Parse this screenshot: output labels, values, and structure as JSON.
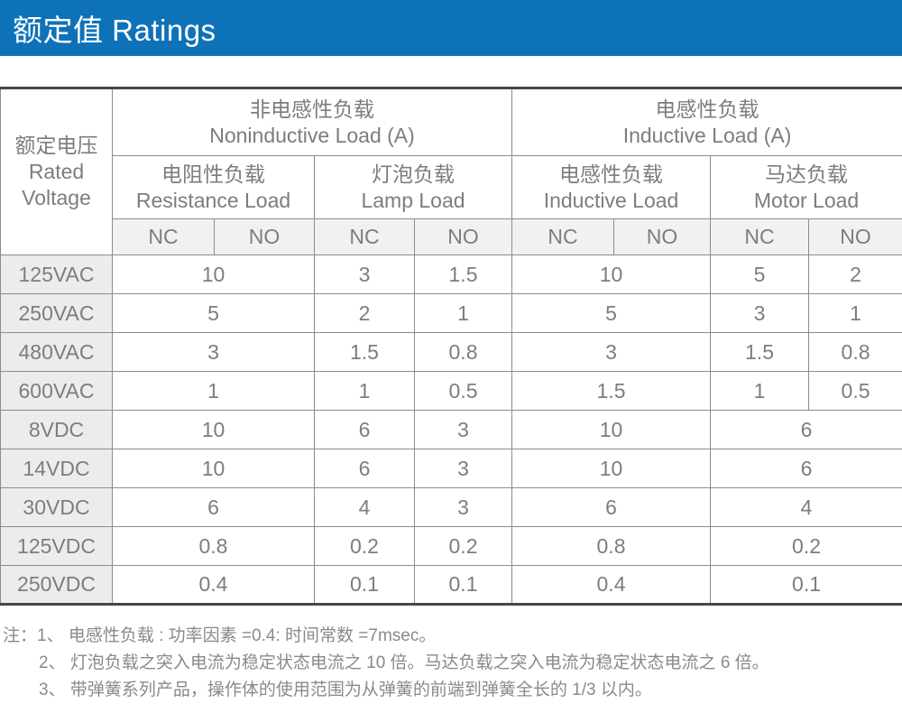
{
  "header": {
    "title": "额定值 Ratings"
  },
  "table": {
    "corner": {
      "zh": "额定电压",
      "en": "Rated Voltage"
    },
    "groups": [
      {
        "zh": "非电感性负载",
        "en": "Noninductive Load (A)"
      },
      {
        "zh": "电感性负载",
        "en": "Inductive Load (A)"
      }
    ],
    "subheaders": [
      {
        "zh": "电阻性负载",
        "en": "Resistance Load"
      },
      {
        "zh": "灯泡负载",
        "en": "Lamp Load"
      },
      {
        "zh": "电感性负载",
        "en": "Inductive Load"
      },
      {
        "zh": "马达负载",
        "en": "Motor Load"
      }
    ],
    "contact_labels": [
      "NC",
      "NO",
      "NC",
      "NO",
      "NC",
      "NO",
      "NC",
      "NO"
    ],
    "rows": [
      {
        "label": "125VAC",
        "cells": [
          {
            "value": "10",
            "span": 2
          },
          {
            "value": "3"
          },
          {
            "value": "1.5"
          },
          {
            "value": "10",
            "span": 2
          },
          {
            "value": "5"
          },
          {
            "value": "2"
          }
        ]
      },
      {
        "label": "250VAC",
        "cells": [
          {
            "value": "5",
            "span": 2
          },
          {
            "value": "2"
          },
          {
            "value": "1"
          },
          {
            "value": "5",
            "span": 2
          },
          {
            "value": "3"
          },
          {
            "value": "1"
          }
        ]
      },
      {
        "label": "480VAC",
        "cells": [
          {
            "value": "3",
            "span": 2
          },
          {
            "value": "1.5"
          },
          {
            "value": "0.8"
          },
          {
            "value": "3",
            "span": 2
          },
          {
            "value": "1.5"
          },
          {
            "value": "0.8"
          }
        ]
      },
      {
        "label": "600VAC",
        "cells": [
          {
            "value": "1",
            "span": 2
          },
          {
            "value": "1"
          },
          {
            "value": "0.5"
          },
          {
            "value": "1.5",
            "span": 2
          },
          {
            "value": "1"
          },
          {
            "value": "0.5"
          }
        ]
      },
      {
        "label": "8VDC",
        "cells": [
          {
            "value": "10",
            "span": 2
          },
          {
            "value": "6"
          },
          {
            "value": "3"
          },
          {
            "value": "10",
            "span": 2
          },
          {
            "value": "6",
            "span": 2
          }
        ]
      },
      {
        "label": "14VDC",
        "cells": [
          {
            "value": "10",
            "span": 2
          },
          {
            "value": "6"
          },
          {
            "value": "3"
          },
          {
            "value": "10",
            "span": 2
          },
          {
            "value": "6",
            "span": 2
          }
        ]
      },
      {
        "label": "30VDC",
        "cells": [
          {
            "value": "6",
            "span": 2
          },
          {
            "value": "4"
          },
          {
            "value": "3"
          },
          {
            "value": "6",
            "span": 2
          },
          {
            "value": "4",
            "span": 2
          }
        ]
      },
      {
        "label": "125VDC",
        "cells": [
          {
            "value": "0.8",
            "span": 2
          },
          {
            "value": "0.2"
          },
          {
            "value": "0.2"
          },
          {
            "value": "0.8",
            "span": 2
          },
          {
            "value": "0.2",
            "span": 2
          }
        ]
      },
      {
        "label": "250VDC",
        "cells": [
          {
            "value": "0.4",
            "span": 2
          },
          {
            "value": "0.1"
          },
          {
            "value": "0.1"
          },
          {
            "value": "0.4",
            "span": 2
          },
          {
            "value": "0.1",
            "span": 2
          }
        ]
      }
    ]
  },
  "notes": {
    "line1": "注：1、 电感性负载 : 功率因素 =0.4: 时间常数 =7msec。",
    "line2": "2、 灯泡负载之突入电流为稳定状态电流之 10 倍。马达负载之突入电流为稳定状态电流之 6 倍。",
    "line3": "3、 带弹簧系列产品，操作体的使用范围为从弹簧的前端到弹簧全长的 1/3 以内。"
  },
  "colors": {
    "accent_blue": "#0e72b8",
    "border_thin": "#8c8c8c",
    "border_thick": "#474747",
    "text_gray": "#7d7d7d",
    "label_cell_bg": "#ececec",
    "contact_row_bg": "#f1f1f1"
  }
}
